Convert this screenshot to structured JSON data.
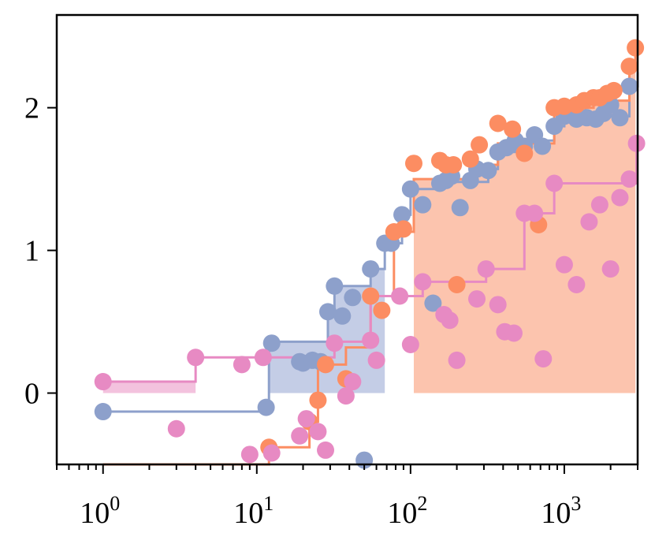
{
  "chart_data": {
    "type": "scatter",
    "title": "",
    "xlabel": "",
    "ylabel": "",
    "xscale": "log",
    "xlim": [
      0.5,
      3000
    ],
    "ylim": [
      -0.5,
      2.65
    ],
    "grid": false,
    "legend": "none",
    "x_ticks": [
      {
        "base": "10",
        "exp": "0",
        "value": 1
      },
      {
        "base": "10",
        "exp": "1",
        "value": 10
      },
      {
        "base": "10",
        "exp": "2",
        "value": 100
      },
      {
        "base": "10",
        "exp": "3",
        "value": 1000
      }
    ],
    "y_ticks": [
      {
        "label": "0",
        "value": 0
      },
      {
        "label": "1",
        "value": 1
      },
      {
        "label": "2",
        "value": 2
      }
    ],
    "series": [
      {
        "color": "#8da0cb",
        "fill_color": "#c4cde6",
        "fill_to_x": 80,
        "points": [
          [
            1,
            -0.13
          ],
          [
            11.5,
            -0.1
          ],
          [
            12.5,
            0.35
          ],
          [
            19,
            0.22
          ],
          [
            20,
            0.21
          ],
          [
            23,
            0.23
          ],
          [
            26,
            0.22
          ],
          [
            29,
            0.57
          ],
          [
            32,
            0.75
          ],
          [
            36,
            0.54
          ],
          [
            42,
            0.67
          ],
          [
            50,
            -0.47
          ],
          [
            55,
            0.87
          ],
          [
            68,
            1.05
          ],
          [
            75,
            1.05
          ],
          [
            88,
            1.25
          ],
          [
            100,
            1.43
          ],
          [
            120,
            1.32
          ],
          [
            140,
            0.63
          ],
          [
            155,
            1.47
          ],
          [
            170,
            1.49
          ],
          [
            185,
            1.52
          ],
          [
            210,
            1.3
          ],
          [
            245,
            1.49
          ],
          [
            270,
            1.57
          ],
          [
            320,
            1.56
          ],
          [
            370,
            1.69
          ],
          [
            420,
            1.72
          ],
          [
            480,
            1.77
          ],
          [
            550,
            1.73
          ],
          [
            640,
            1.81
          ],
          [
            720,
            1.73
          ],
          [
            860,
            1.87
          ],
          [
            1000,
            1.94
          ],
          [
            1200,
            1.92
          ],
          [
            1400,
            1.93
          ],
          [
            1600,
            1.92
          ],
          [
            1800,
            1.96
          ],
          [
            2000,
            2.02
          ],
          [
            2300,
            1.93
          ],
          [
            2650,
            2.15
          ]
        ],
        "step": [
          [
            1,
            -0.13
          ],
          [
            12,
            -0.13
          ],
          [
            12,
            0.36
          ],
          [
            29,
            0.36
          ],
          [
            29,
            0.57
          ],
          [
            32,
            0.57
          ],
          [
            32,
            0.75
          ],
          [
            55,
            0.75
          ],
          [
            55,
            0.87
          ],
          [
            68,
            0.87
          ],
          [
            68,
            1.05
          ],
          [
            88,
            1.05
          ],
          [
            88,
            1.25
          ],
          [
            100,
            1.25
          ],
          [
            100,
            1.43
          ],
          [
            155,
            1.43
          ],
          [
            155,
            1.48
          ],
          [
            320,
            1.48
          ],
          [
            320,
            1.57
          ],
          [
            370,
            1.57
          ],
          [
            370,
            1.69
          ],
          [
            480,
            1.69
          ],
          [
            480,
            1.77
          ],
          [
            860,
            1.77
          ],
          [
            860,
            1.87
          ],
          [
            1000,
            1.87
          ],
          [
            1000,
            1.94
          ],
          [
            2650,
            1.94
          ],
          [
            2650,
            2.15
          ],
          [
            3000,
            2.15
          ],
          [
            3000,
            2.25
          ]
        ]
      },
      {
        "color": "#fc8d62",
        "fill_color": "#fcc4ae",
        "fill_from_x": 90,
        "points": [
          [
            12,
            -0.38
          ],
          [
            22,
            -0.2
          ],
          [
            25,
            -0.05
          ],
          [
            28,
            0.2
          ],
          [
            38,
            0.1
          ],
          [
            55,
            0.68
          ],
          [
            65,
            0.58
          ],
          [
            78,
            1.13
          ],
          [
            90,
            1.15
          ],
          [
            105,
            1.61
          ],
          [
            155,
            1.63
          ],
          [
            170,
            1.6
          ],
          [
            190,
            1.6
          ],
          [
            200,
            0.76
          ],
          [
            245,
            1.64
          ],
          [
            280,
            1.74
          ],
          [
            370,
            1.89
          ],
          [
            460,
            1.85
          ],
          [
            550,
            1.68
          ],
          [
            680,
            1.18
          ],
          [
            860,
            2.0
          ],
          [
            1000,
            2.01
          ],
          [
            1200,
            2.02
          ],
          [
            1350,
            2.05
          ],
          [
            1550,
            2.07
          ],
          [
            1700,
            2.07
          ],
          [
            1900,
            2.1
          ],
          [
            2100,
            2.12
          ],
          [
            2650,
            2.29
          ],
          [
            2900,
            2.42
          ]
        ],
        "step": [
          [
            1,
            -0.5
          ],
          [
            1,
            -0.5
          ],
          [
            12,
            -0.5
          ],
          [
            12,
            -0.38
          ],
          [
            22,
            -0.38
          ],
          [
            22,
            -0.2
          ],
          [
            25,
            -0.2
          ],
          [
            25,
            0.2
          ],
          [
            38,
            0.2
          ],
          [
            38,
            0.32
          ],
          [
            55,
            0.32
          ],
          [
            55,
            0.68
          ],
          [
            78,
            0.68
          ],
          [
            78,
            1.13
          ],
          [
            105,
            1.13
          ],
          [
            105,
            1.5
          ],
          [
            245,
            1.5
          ],
          [
            245,
            1.6
          ],
          [
            370,
            1.6
          ],
          [
            370,
            1.75
          ],
          [
            860,
            1.75
          ],
          [
            860,
            2.0
          ],
          [
            1550,
            2.0
          ],
          [
            1550,
            2.05
          ],
          [
            2650,
            2.05
          ],
          [
            2650,
            2.29
          ],
          [
            2900,
            2.29
          ],
          [
            2900,
            2.42
          ]
        ]
      },
      {
        "color": "#e78ac3",
        "fill_color": "#f3c2de",
        "fill_to_x": 28,
        "points": [
          [
            1,
            0.08
          ],
          [
            3,
            -0.25
          ],
          [
            4,
            0.25
          ],
          [
            8,
            0.2
          ],
          [
            9,
            -0.43
          ],
          [
            11,
            0.25
          ],
          [
            12.5,
            -0.42
          ],
          [
            19,
            -0.3
          ],
          [
            21,
            -0.18
          ],
          [
            25,
            -0.27
          ],
          [
            28,
            -0.4
          ],
          [
            32,
            0.35
          ],
          [
            38,
            -0.02
          ],
          [
            42,
            0.08
          ],
          [
            55,
            0.37
          ],
          [
            60,
            0.23
          ],
          [
            85,
            0.68
          ],
          [
            100,
            0.34
          ],
          [
            120,
            0.78
          ],
          [
            165,
            0.55
          ],
          [
            180,
            0.51
          ],
          [
            200,
            0.23
          ],
          [
            270,
            0.66
          ],
          [
            310,
            0.87
          ],
          [
            370,
            0.62
          ],
          [
            410,
            0.43
          ],
          [
            470,
            0.42
          ],
          [
            550,
            1.26
          ],
          [
            640,
            1.26
          ],
          [
            730,
            0.24
          ],
          [
            860,
            1.47
          ],
          [
            1000,
            0.9
          ],
          [
            1200,
            0.76
          ],
          [
            1450,
            1.2
          ],
          [
            1700,
            1.32
          ],
          [
            2000,
            0.87
          ],
          [
            2300,
            1.37
          ],
          [
            2650,
            1.5
          ],
          [
            2950,
            1.75
          ]
        ],
        "step": [
          [
            1,
            0.08
          ],
          [
            4,
            0.08
          ],
          [
            4,
            0.25
          ],
          [
            32,
            0.25
          ],
          [
            32,
            0.36
          ],
          [
            55,
            0.36
          ],
          [
            55,
            0.68
          ],
          [
            120,
            0.68
          ],
          [
            120,
            0.78
          ],
          [
            310,
            0.78
          ],
          [
            310,
            0.87
          ],
          [
            550,
            0.87
          ],
          [
            550,
            1.26
          ],
          [
            860,
            1.26
          ],
          [
            860,
            1.47
          ],
          [
            2950,
            1.47
          ],
          [
            2950,
            1.75
          ]
        ]
      }
    ]
  }
}
